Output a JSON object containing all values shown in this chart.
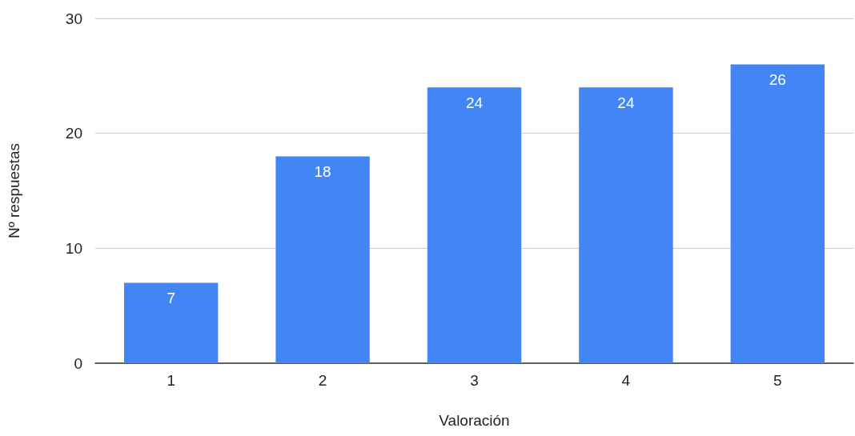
{
  "chart_data": {
    "type": "bar",
    "xlabel": "Valoración",
    "ylabel": "Nº respuestas",
    "categories": [
      "1",
      "2",
      "3",
      "4",
      "5"
    ],
    "values": [
      7,
      18,
      24,
      24,
      26
    ],
    "color": "#4285f4",
    "ylim": [
      0,
      30
    ],
    "yticks": [
      0,
      10,
      20,
      30
    ],
    "grid": "y",
    "data_labels": true
  }
}
